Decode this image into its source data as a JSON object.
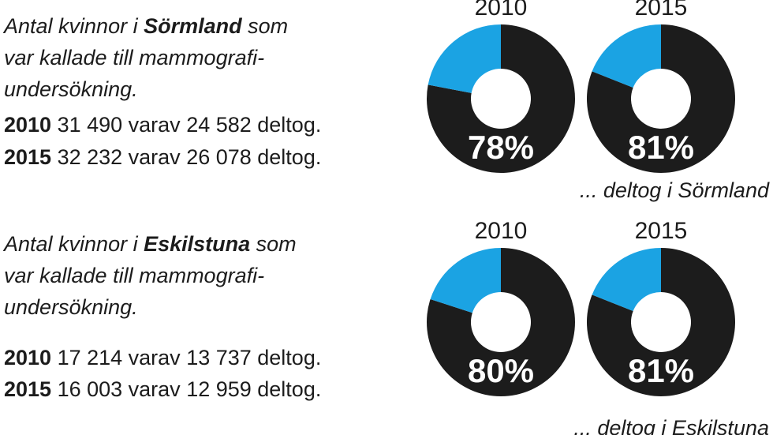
{
  "sections": [
    {
      "intro": [
        [
          "Antal kvinnor i ",
          "Sörmland",
          " som"
        ],
        [
          "var kallade till mammografi-"
        ],
        [
          "undersökning."
        ]
      ],
      "stats": [
        {
          "year": "2010",
          "text": " 31 490 varav 24 582 deltog."
        },
        {
          "year": "2015",
          "text": " 32 232 varav 26 078 deltog."
        }
      ],
      "caption": "... deltog i Sörmland"
    },
    {
      "intro": [
        [
          "Antal kvinnor i ",
          "Eskilstuna",
          " som"
        ],
        [
          "var kallade till mammografi-"
        ],
        [
          "undersökning."
        ]
      ],
      "stats": [
        {
          "year": "2010",
          "text": " 17 214 varav 13 737 deltog."
        },
        {
          "year": "2015",
          "text": " 16 003 varav 12 959 deltog."
        }
      ],
      "caption": "... deltog i Eskilstuna"
    }
  ],
  "chart_data": [
    {
      "type": "pie",
      "title": "2010",
      "values": [
        78,
        22
      ],
      "value_labels": [
        "78%",
        null
      ],
      "colors": [
        "#1c1c1c",
        "#1ba3e3"
      ]
    },
    {
      "type": "pie",
      "title": "2015",
      "values": [
        81,
        19
      ],
      "value_labels": [
        "81%",
        null
      ],
      "colors": [
        "#1c1c1c",
        "#1ba3e3"
      ]
    },
    {
      "type": "pie",
      "title": "2010",
      "values": [
        80,
        20
      ],
      "value_labels": [
        "80%",
        null
      ],
      "colors": [
        "#1c1c1c",
        "#1ba3e3"
      ]
    },
    {
      "type": "pie",
      "title": "2015",
      "values": [
        81,
        19
      ],
      "value_labels": [
        "81%",
        null
      ],
      "colors": [
        "#1c1c1c",
        "#1ba3e3"
      ]
    }
  ]
}
